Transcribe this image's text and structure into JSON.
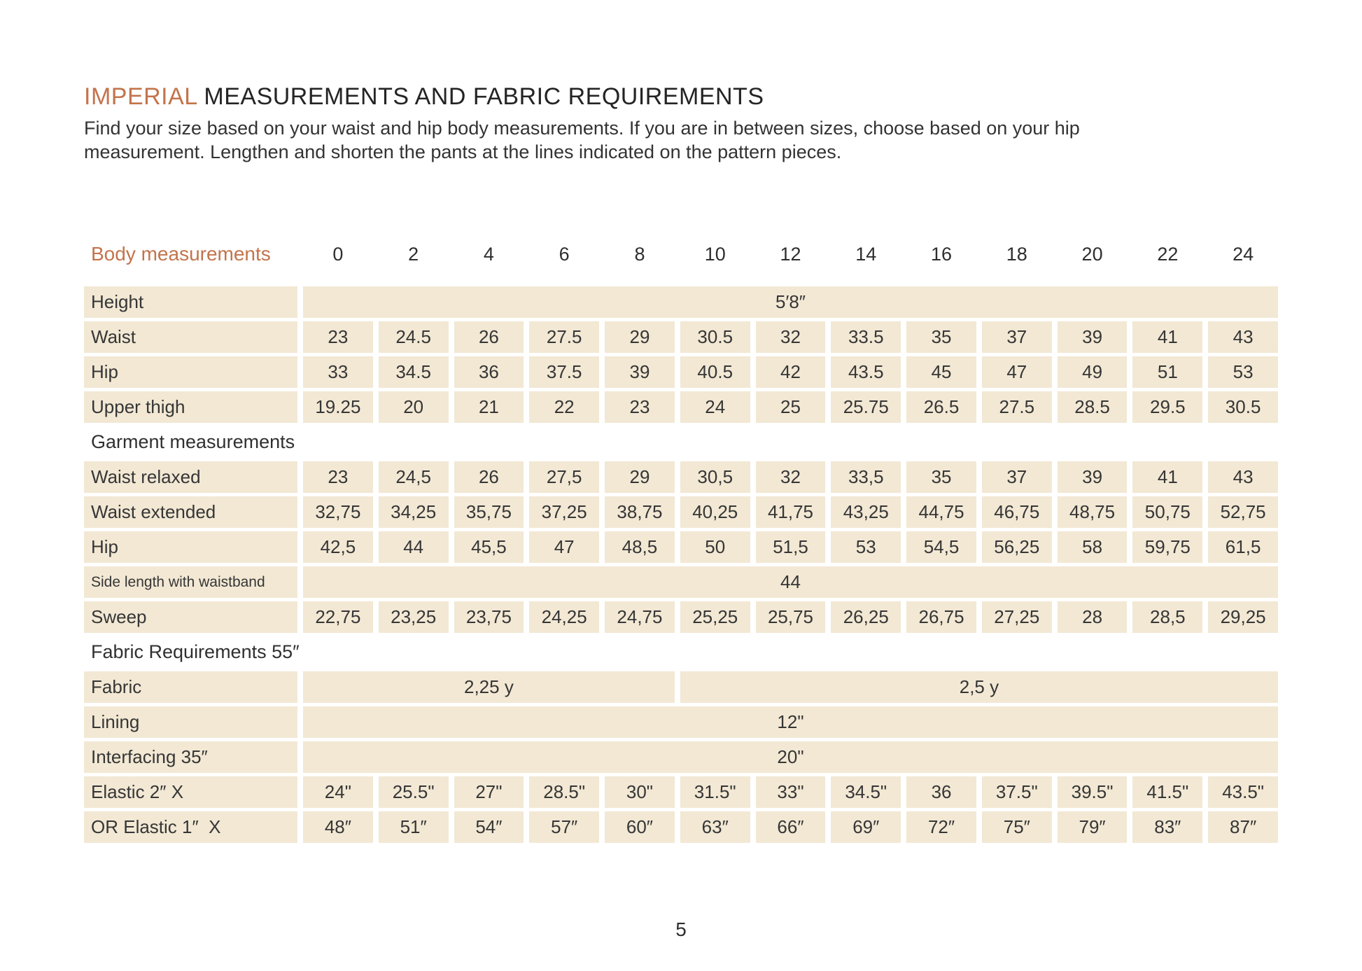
{
  "colors": {
    "accent_orange": "#c3744c",
    "cell_beige": "#f2e8d4",
    "text_dark": "#363636"
  },
  "header": {
    "title_highlight": "IMPERIAL",
    "title_rest": " MEASUREMENTS AND FABRIC REQUIREMENTS",
    "description_line1": "Find your size based on your waist and hip body measurements. If you are in between sizes, choose based on your hip",
    "description_line2": "measurement. Lengthen and shorten the pants at the lines indicated on the pattern pieces."
  },
  "table": {
    "header_label": "Body measurements",
    "sizes": [
      "0",
      "2",
      "4",
      "6",
      "8",
      "10",
      "12",
      "14",
      "16",
      "18",
      "20",
      "22",
      "24"
    ],
    "rows": [
      {
        "type": "row",
        "label": "Height",
        "cells": [
          {
            "t": "5′8″",
            "span": 13
          }
        ]
      },
      {
        "type": "row",
        "label": "Waist",
        "cells": [
          "23",
          "24.5",
          "26",
          "27.5",
          "29",
          "30.5",
          "32",
          "33.5",
          "35",
          "37",
          "39",
          "41",
          "43"
        ]
      },
      {
        "type": "row",
        "label": "Hip",
        "cells": [
          "33",
          "34.5",
          "36",
          "37.5",
          "39",
          "40.5",
          "42",
          "43.5",
          "45",
          "47",
          "49",
          "51",
          "53"
        ]
      },
      {
        "type": "row",
        "label": "Upper thigh",
        "cells": [
          "19.25",
          "20",
          "21",
          "22",
          "23",
          "24",
          "25",
          "25.75",
          "26.5",
          "27.5",
          "28.5",
          "29.5",
          "30.5"
        ]
      },
      {
        "type": "section",
        "label": "Garment measurements"
      },
      {
        "type": "row",
        "label": "Waist relaxed",
        "cells": [
          "23",
          "24,5",
          "26",
          "27,5",
          "29",
          "30,5",
          "32",
          "33,5",
          "35",
          "37",
          "39",
          "41",
          "43"
        ]
      },
      {
        "type": "row",
        "label": "Waist extended",
        "cells": [
          "32,75",
          "34,25",
          "35,75",
          "37,25",
          "38,75",
          "40,25",
          "41,75",
          "43,25",
          "44,75",
          "46,75",
          "48,75",
          "50,75",
          "52,75"
        ]
      },
      {
        "type": "row",
        "label": "Hip",
        "cells": [
          "42,5",
          "44",
          "45,5",
          "47",
          "48,5",
          "50",
          "51,5",
          "53",
          "54,5",
          "56,25",
          "58",
          "59,75",
          "61,5"
        ]
      },
      {
        "type": "row",
        "label": "Side length with waistband",
        "small": true,
        "cells": [
          {
            "t": "44",
            "span": 13
          }
        ]
      },
      {
        "type": "row",
        "label": "Sweep",
        "cells": [
          "22,75",
          "23,25",
          "23,75",
          "24,25",
          "24,75",
          "25,25",
          "25,75",
          "26,25",
          "26,75",
          "27,25",
          "28",
          "28,5",
          "29,25"
        ]
      },
      {
        "type": "section",
        "label": "Fabric Requirements 55″"
      },
      {
        "type": "row",
        "label": "Fabric",
        "cells": [
          {
            "t": "2,25 y",
            "span": 5
          },
          {
            "t": "2,5 y",
            "span": 8
          }
        ]
      },
      {
        "type": "row",
        "label": "Lining",
        "cells": [
          {
            "t": "12\"",
            "span": 13
          }
        ]
      },
      {
        "type": "row",
        "label": "Interfacing 35″",
        "cells": [
          {
            "t": "20\"",
            "span": 13
          }
        ]
      },
      {
        "type": "row",
        "label": "Elastic 2″ X",
        "cells": [
          "24\"",
          "25.5\"",
          "27\"",
          "28.5\"",
          "30\"",
          "31.5\"",
          "33\"",
          "34.5\"",
          "36",
          "37.5\"",
          "39.5\"",
          "41.5\"",
          "43.5\""
        ]
      },
      {
        "type": "row",
        "label": "OR Elastic 1″  X",
        "cells": [
          "48″",
          "51″",
          "54″",
          "57″",
          "60″",
          "63″",
          "66″",
          "69″",
          "72″",
          "75″",
          "79″",
          "83″",
          "87″"
        ]
      }
    ]
  },
  "footer": {
    "page_number": "5"
  }
}
